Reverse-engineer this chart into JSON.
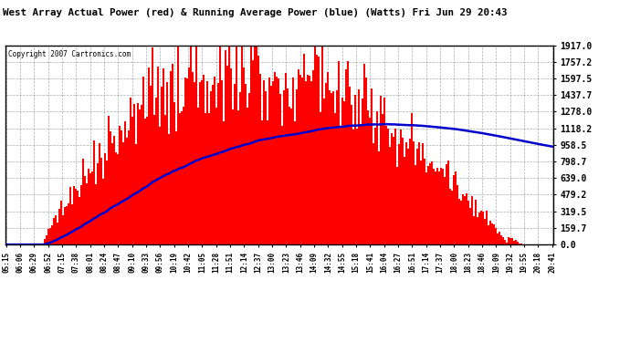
{
  "title": "West Array Actual Power (red) & Running Average Power (blue) (Watts) Fri Jun 29 20:43",
  "copyright": "Copyright 2007 Cartronics.com",
  "background_color": "#ffffff",
  "bar_color": "#ff0000",
  "line_color": "#0000cc",
  "yticks": [
    0.0,
    159.7,
    319.5,
    479.2,
    639.0,
    798.7,
    958.5,
    1118.2,
    1278.0,
    1437.7,
    1597.5,
    1757.2,
    1917.0
  ],
  "ymax": 1917.0,
  "time_labels": [
    "05:15",
    "06:06",
    "06:29",
    "06:52",
    "07:15",
    "07:38",
    "08:01",
    "08:24",
    "08:47",
    "09:10",
    "09:33",
    "09:56",
    "10:19",
    "10:42",
    "11:05",
    "11:28",
    "11:51",
    "12:14",
    "12:37",
    "13:00",
    "13:23",
    "13:46",
    "14:09",
    "14:32",
    "14:55",
    "15:18",
    "15:41",
    "16:04",
    "16:27",
    "16:51",
    "17:14",
    "17:37",
    "18:00",
    "18:23",
    "18:46",
    "19:09",
    "19:32",
    "19:55",
    "20:18",
    "20:41"
  ]
}
